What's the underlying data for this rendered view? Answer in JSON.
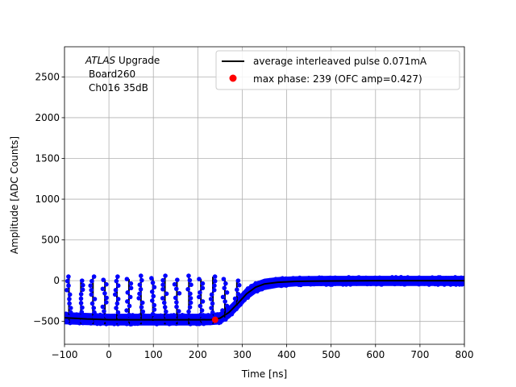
{
  "chart_data": {
    "type": "scatter",
    "xlabel": "Time [ns]",
    "ylabel": "Amplitude [ADC Counts]",
    "xlim": [
      -100,
      800
    ],
    "ylim": [
      -780,
      2870
    ],
    "xticks": [
      -100,
      0,
      100,
      200,
      300,
      400,
      500,
      600,
      700,
      800
    ],
    "yticks": [
      -500,
      0,
      500,
      1000,
      1500,
      2000,
      2500
    ],
    "grid": true,
    "legend_position": "top-right",
    "annotation": {
      "line1_italic": "ATLAS",
      "line1_rest": " Upgrade",
      "line2": "Board260",
      "line3": "Ch016 35dB"
    },
    "series": [
      {
        "name": "average interleaved pulse 0.071mA",
        "kind": "line",
        "color": "#000000",
        "points": [
          [
            -100,
            -455
          ],
          [
            -50,
            -470
          ],
          [
            0,
            -478
          ],
          [
            50,
            -480
          ],
          [
            100,
            -480
          ],
          [
            150,
            -480
          ],
          [
            200,
            -480
          ],
          [
            230,
            -478
          ],
          [
            250,
            -460
          ],
          [
            270,
            -390
          ],
          [
            290,
            -280
          ],
          [
            310,
            -160
          ],
          [
            330,
            -80
          ],
          [
            350,
            -40
          ],
          [
            380,
            -20
          ],
          [
            420,
            -8
          ],
          [
            500,
            -3
          ],
          [
            600,
            0
          ],
          [
            700,
            0
          ],
          [
            800,
            0
          ]
        ]
      },
      {
        "name": "max phase: 239 (OFC amp=0.427)",
        "kind": "marker",
        "color": "#ff0000",
        "points": [
          [
            239,
            -480
          ]
        ]
      },
      {
        "name": "",
        "kind": "samples",
        "color": "#0000ff",
        "band": [
          [
            -100,
            -400,
            -520
          ],
          [
            -50,
            -410,
            -530
          ],
          [
            0,
            -420,
            -535
          ],
          [
            100,
            -420,
            -535
          ],
          [
            200,
            -420,
            -535
          ],
          [
            230,
            -415,
            -530
          ],
          [
            250,
            -400,
            -520
          ],
          [
            270,
            -330,
            -450
          ],
          [
            290,
            -220,
            -340
          ],
          [
            310,
            -100,
            -220
          ],
          [
            330,
            -30,
            -140
          ],
          [
            350,
            10,
            -100
          ],
          [
            380,
            30,
            -70
          ],
          [
            420,
            40,
            -55
          ],
          [
            500,
            45,
            -50
          ],
          [
            600,
            45,
            -50
          ],
          [
            700,
            45,
            -50
          ],
          [
            800,
            45,
            -50
          ]
        ],
        "spike_times": [
          -90,
          -63,
          -36,
          -9,
          18,
          45,
          72,
          99,
          126,
          153,
          180,
          207,
          234,
          261,
          288
        ],
        "spike_tops": [
          50,
          0,
          50,
          10,
          50,
          20,
          60,
          30,
          60,
          10,
          60,
          20,
          50,
          20,
          0
        ]
      }
    ]
  }
}
